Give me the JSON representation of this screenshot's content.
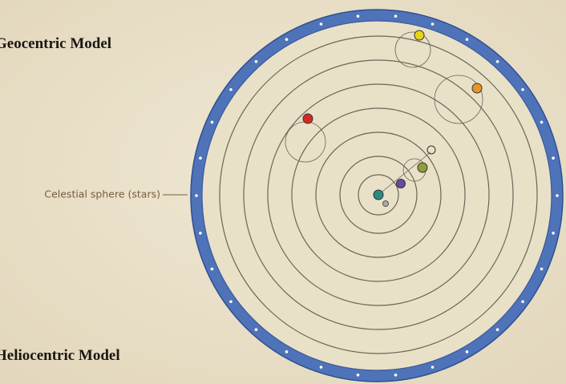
{
  "titles": {
    "top": "Geocentric Model",
    "bottom": "Heliocentric Model"
  },
  "annotation": "Celestial sphere (stars)"
}
